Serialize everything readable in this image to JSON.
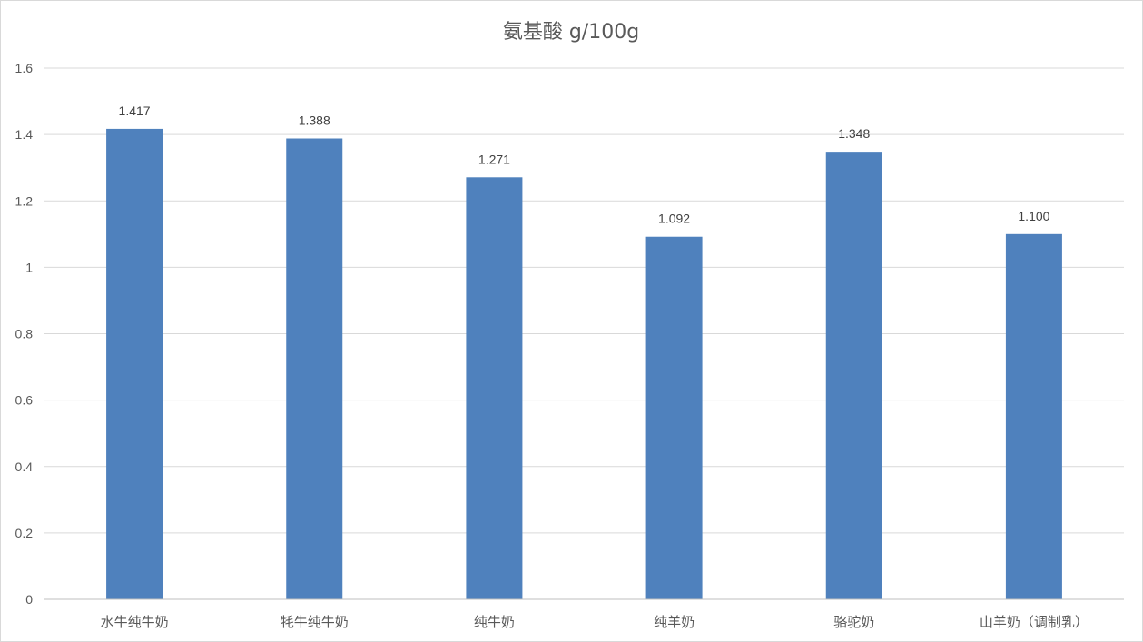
{
  "chart_data": {
    "type": "bar",
    "title": "氨基酸 g/100g",
    "categories": [
      "水牛纯牛奶",
      "牦牛纯牛奶",
      "纯牛奶",
      "纯羊奶",
      "骆驼奶",
      "山羊奶（调制乳）"
    ],
    "values": [
      1.417,
      1.388,
      1.271,
      1.092,
      1.348,
      1.1
    ],
    "data_labels": [
      "1.417",
      "1.388",
      "1.271",
      "1.092",
      "1.348",
      "1.100"
    ],
    "xlabel": "",
    "ylabel": "",
    "ylim": [
      0,
      1.6
    ],
    "yticks": [
      0,
      0.2,
      0.4,
      0.6,
      0.8,
      1,
      1.2,
      1.4,
      1.6
    ],
    "ytick_labels": [
      "0",
      "0.2",
      "0.4",
      "0.6",
      "0.8",
      "1",
      "1.2",
      "1.4",
      "1.6"
    ],
    "grid": true,
    "legend": "none",
    "bar_color": "#4f81bd"
  }
}
